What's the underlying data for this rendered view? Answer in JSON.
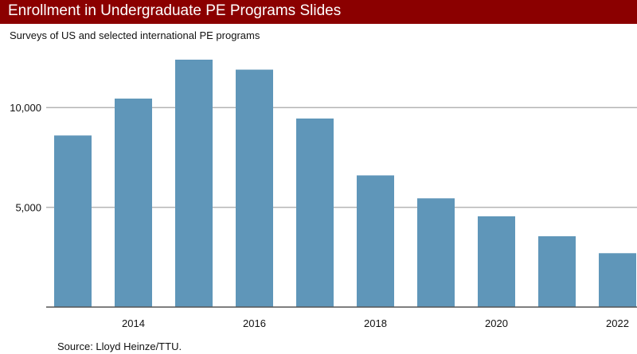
{
  "header": {
    "title": "Enrollment in Undergraduate PE Programs Slides",
    "subtitle": "Surveys of US and selected international PE programs"
  },
  "footer": {
    "source": "Source: Lloyd Heinze/TTU."
  },
  "colors": {
    "title_bar": "#8b0000",
    "bar": "#5f96b9",
    "grid": "#b5b5b5",
    "axis": "#555555"
  },
  "chart_data": {
    "type": "bar",
    "title": "Enrollment in Undergraduate PE Programs Slides",
    "subtitle": "Surveys of US and selected international PE programs",
    "categories": [
      "2013",
      "2014",
      "2015",
      "2016",
      "2017",
      "2018",
      "2019",
      "2020",
      "2021",
      "2022"
    ],
    "values": [
      8600,
      10450,
      12400,
      11900,
      9450,
      6600,
      5450,
      4550,
      3550,
      2700
    ],
    "x_tick_labels": [
      "",
      "2014",
      "",
      "2016",
      "",
      "2018",
      "",
      "2020",
      "",
      "2022"
    ],
    "y_ticks": [
      5000,
      10000
    ],
    "y_tick_labels": [
      "5,000",
      "10,000"
    ],
    "ylim": [
      0,
      12400
    ],
    "grid": "horizontal",
    "legend": "none",
    "xlabel": "",
    "ylabel": ""
  }
}
